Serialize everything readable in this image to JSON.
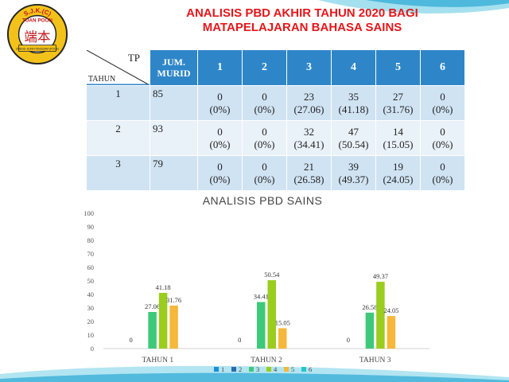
{
  "title": {
    "line1": "ANALISIS PBD AKHIR TAHUN 2020 BAGI",
    "line2": "MATAPELAJARAN BAHASA SAINS"
  },
  "logo": {
    "top_text": "S.J.K.(C)",
    "school_name": "TUAN POON",
    "characters": "端本",
    "bottom_text": "CHENG JEAN PENGSAM (KODE)"
  },
  "table": {
    "corner_tp": "TP",
    "corner_tahun": "TAHUN",
    "jum_label_1": "JUM.",
    "jum_label_2": "MURID",
    "tp_headers": [
      "1",
      "2",
      "3",
      "4",
      "5",
      "6"
    ],
    "rows": [
      {
        "tahun": "1",
        "murid": "85",
        "cells": [
          [
            "0",
            "(0%)"
          ],
          [
            "0",
            "(0%)"
          ],
          [
            "23",
            "(27.06)"
          ],
          [
            "35",
            "(41.18)"
          ],
          [
            "27",
            "(31.76)"
          ],
          [
            "0",
            "(0%)"
          ]
        ]
      },
      {
        "tahun": "2",
        "murid": "93",
        "cells": [
          [
            "0",
            "(0%)"
          ],
          [
            "0",
            "(0%)"
          ],
          [
            "32",
            "(34.41)"
          ],
          [
            "47",
            "(50.54)"
          ],
          [
            "14",
            "(15.05)"
          ],
          [
            "0",
            "(0%)"
          ]
        ]
      },
      {
        "tahun": "3",
        "murid": "79",
        "cells": [
          [
            "0",
            "(0%)"
          ],
          [
            "0",
            "(0%)"
          ],
          [
            "21",
            "(26.58)"
          ],
          [
            "39",
            "(49.37)"
          ],
          [
            "19",
            "(24.05)"
          ],
          [
            "0",
            "(0%)"
          ]
        ]
      }
    ]
  },
  "chart_data": {
    "type": "bar",
    "title": "ANALISIS  PBD SAINS",
    "categories": [
      "TAHUN 1",
      "TAHUN 2",
      "TAHUN 3"
    ],
    "ylim": [
      0,
      100
    ],
    "yticks": [
      0,
      10,
      20,
      30,
      40,
      50,
      60,
      70,
      80,
      90,
      100
    ],
    "grid": false,
    "legend_position": "bottom",
    "series": [
      {
        "name": "1",
        "values": [
          0,
          0,
          0
        ],
        "color": "#1a8fd8"
      },
      {
        "name": "2",
        "values": [
          0,
          0,
          0
        ],
        "color": "#2b6cb0"
      },
      {
        "name": "3",
        "values": [
          27.06,
          34.41,
          26.58
        ],
        "color": "#3ec97a"
      },
      {
        "name": "4",
        "values": [
          41.18,
          50.54,
          49.37
        ],
        "color": "#9acd1e"
      },
      {
        "name": "5",
        "values": [
          31.76,
          15.05,
          24.05
        ],
        "color": "#f6b83a"
      },
      {
        "name": "6",
        "values": [
          0,
          0,
          0
        ],
        "color": "#26c6c8"
      }
    ],
    "zero_labels": [
      "0",
      "0",
      "0"
    ]
  },
  "colors": {
    "title": "#e3171b",
    "table_header": "#2e86c9",
    "row_odd": "#d0e3f3",
    "row_even": "#e9f1f9"
  }
}
